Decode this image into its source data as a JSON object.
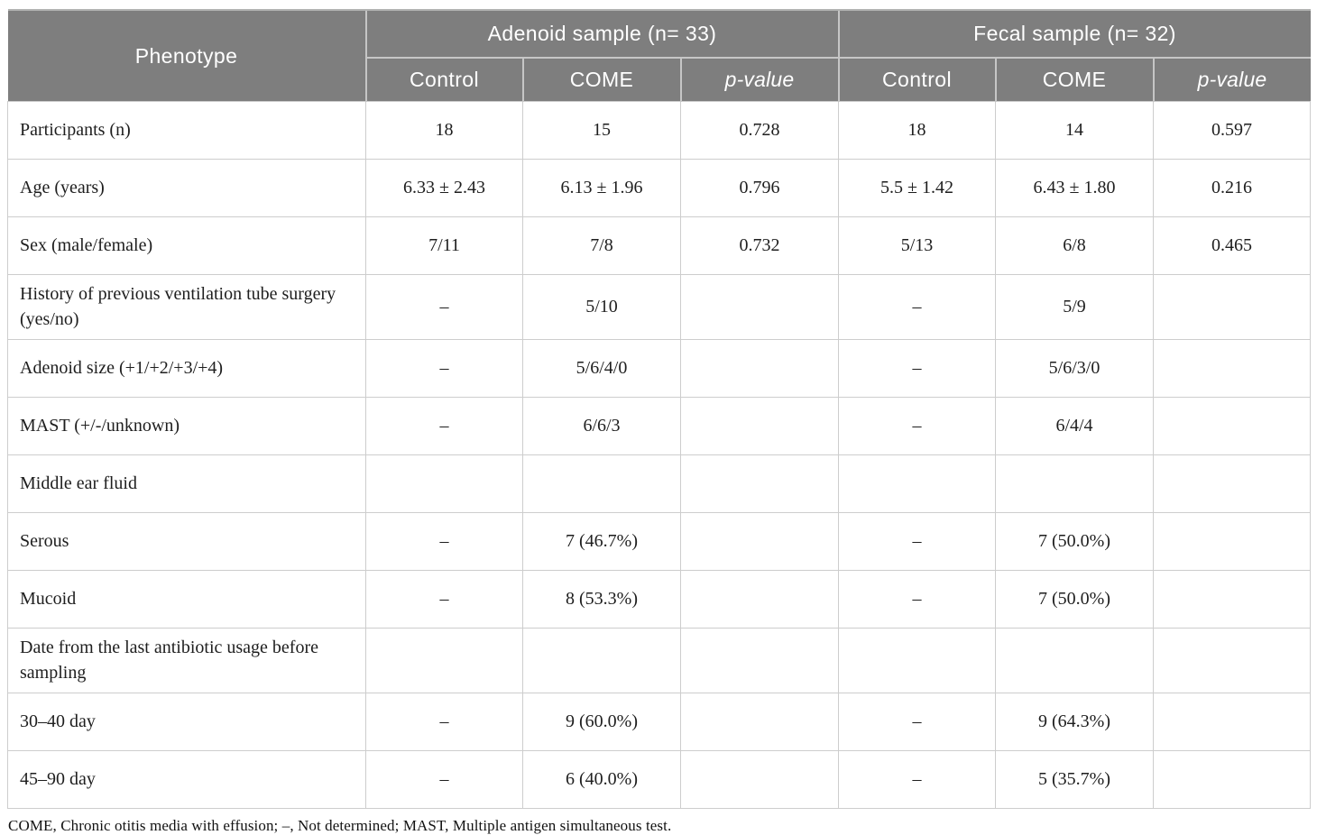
{
  "colors": {
    "header_bg": "#7e7e7e",
    "header_text": "#ffffff",
    "header_divider": "#c6c6c6",
    "body_border": "#cdcdcd",
    "body_text": "#1e1e1e"
  },
  "table": {
    "header": {
      "phenotype": "Phenotype",
      "groups": [
        {
          "label": "Adenoid sample (n= 33)",
          "subheaders": [
            {
              "label": "Control",
              "italic": false
            },
            {
              "label": "COME",
              "italic": false
            },
            {
              "label": "p-value",
              "italic": true
            }
          ]
        },
        {
          "label": "Fecal sample (n= 32)",
          "subheaders": [
            {
              "label": "Control",
              "italic": false
            },
            {
              "label": "COME",
              "italic": false
            },
            {
              "label": "p-value",
              "italic": true
            }
          ]
        }
      ]
    },
    "rows": [
      {
        "label": "Participants (n)",
        "cells": [
          "18",
          "15",
          "0.728",
          "18",
          "14",
          "0.597"
        ]
      },
      {
        "label": "Age (years)",
        "cells": [
          "6.33 ± 2.43",
          "6.13 ± 1.96",
          "0.796",
          "5.5 ± 1.42",
          "6.43 ± 1.80",
          "0.216"
        ]
      },
      {
        "label": "Sex (male/female)",
        "cells": [
          "7/11",
          "7/8",
          "0.732",
          "5/13",
          "6/8",
          "0.465"
        ]
      },
      {
        "label": "History of previous ventilation tube surgery (yes/no)",
        "cells": [
          "–",
          "5/10",
          "",
          "–",
          "5/9",
          ""
        ]
      },
      {
        "label": "Adenoid size (+1/+2/+3/+4)",
        "cells": [
          "–",
          "5/6/4/0",
          "",
          "–",
          "5/6/3/0",
          ""
        ]
      },
      {
        "label": "MAST (+/-/unknown)",
        "cells": [
          "–",
          "6/6/3",
          "",
          "–",
          "6/4/4",
          ""
        ]
      },
      {
        "label": "Middle ear fluid",
        "cells": [
          "",
          "",
          "",
          "",
          "",
          ""
        ]
      },
      {
        "label": "Serous",
        "cells": [
          "–",
          "7 (46.7%)",
          "",
          "–",
          "7 (50.0%)",
          ""
        ]
      },
      {
        "label": "Mucoid",
        "cells": [
          "–",
          "8 (53.3%)",
          "",
          "–",
          "7 (50.0%)",
          ""
        ]
      },
      {
        "label": "Date from the last antibiotic usage before sampling",
        "cells": [
          "",
          "",
          "",
          "",
          "",
          ""
        ]
      },
      {
        "label": "30–40 day",
        "cells": [
          "–",
          "9 (60.0%)",
          "",
          "–",
          "9 (64.3%)",
          ""
        ]
      },
      {
        "label": "45–90 day",
        "cells": [
          "–",
          "6 (40.0%)",
          "",
          "–",
          "5 (35.7%)",
          ""
        ]
      }
    ],
    "footnote": "COME, Chronic otitis media with effusion; –, Not determined; MAST, Multiple antigen simultaneous test."
  }
}
